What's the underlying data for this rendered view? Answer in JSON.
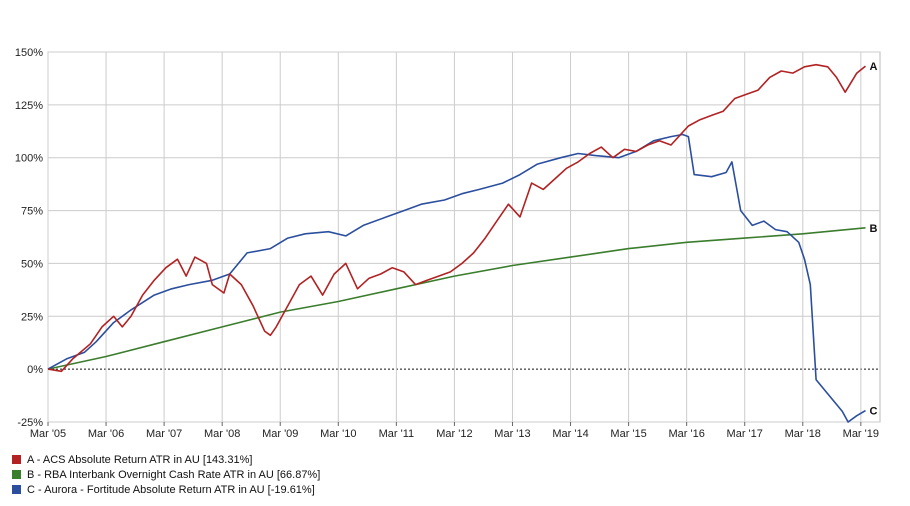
{
  "chart_data": {
    "type": "line",
    "title": "",
    "xlabel": "",
    "ylabel": "",
    "x_ticks": [
      "Mar '05",
      "Mar '06",
      "Mar '07",
      "Mar '08",
      "Mar '09",
      "Mar '10",
      "Mar '11",
      "Mar '12",
      "Mar '13",
      "Mar '14",
      "Mar '15",
      "Mar '16",
      "Mar '17",
      "Mar '18",
      "Mar '19"
    ],
    "y_ticks": [
      "150%",
      "125%",
      "100%",
      "75%",
      "50%",
      "25%",
      "0%",
      "-25%"
    ],
    "y_tick_values": [
      150,
      125,
      100,
      75,
      50,
      25,
      0,
      -25
    ],
    "xlim": [
      2005.17,
      2019.5
    ],
    "ylim": [
      -25,
      150
    ],
    "grid": true,
    "legend_position": "bottom-left",
    "series": [
      {
        "name": "A - ACS Absolute Return ATR in AU [143.31%]",
        "end_label": "A",
        "color": "#b22222",
        "x": [
          2005.17,
          2005.4,
          2005.6,
          2005.9,
          2006.1,
          2006.3,
          2006.45,
          2006.6,
          2006.8,
          2007.0,
          2007.2,
          2007.4,
          2007.55,
          2007.7,
          2007.9,
          2008.0,
          2008.2,
          2008.3,
          2008.5,
          2008.7,
          2008.9,
          2009.0,
          2009.1,
          2009.3,
          2009.5,
          2009.7,
          2009.9,
          2010.1,
          2010.3,
          2010.5,
          2010.7,
          2010.9,
          2011.1,
          2011.3,
          2011.5,
          2011.7,
          2011.9,
          2012.1,
          2012.3,
          2012.5,
          2012.7,
          2012.9,
          2013.1,
          2013.3,
          2013.5,
          2013.7,
          2013.9,
          2014.1,
          2014.3,
          2014.5,
          2014.7,
          2014.9,
          2015.1,
          2015.3,
          2015.5,
          2015.7,
          2015.9,
          2016.1,
          2016.2,
          2016.4,
          2016.6,
          2016.8,
          2017.0,
          2017.2,
          2017.4,
          2017.6,
          2017.8,
          2018.0,
          2018.2,
          2018.4,
          2018.6,
          2018.75,
          2018.9,
          2019.1,
          2019.25
        ],
        "values": [
          0,
          -1,
          5,
          12,
          20,
          25,
          20,
          25,
          35,
          42,
          48,
          52,
          44,
          53,
          50,
          40,
          36,
          45,
          40,
          30,
          18,
          16,
          20,
          30,
          40,
          44,
          35,
          45,
          50,
          38,
          43,
          45,
          48,
          46,
          40,
          42,
          44,
          46,
          50,
          55,
          62,
          70,
          78,
          72,
          88,
          85,
          90,
          95,
          98,
          102,
          105,
          100,
          104,
          103,
          106,
          108,
          106,
          112,
          115,
          118,
          120,
          122,
          128,
          130,
          132,
          138,
          141,
          140,
          143,
          144,
          143,
          138,
          131,
          140,
          143.31
        ]
      },
      {
        "name": "B - RBA Interbank Overnight Cash Rate ATR in AU [66.87%]",
        "end_label": "B",
        "color": "#3a7d2c",
        "x": [
          2005.17,
          2006.17,
          2007.17,
          2008.17,
          2009.17,
          2010.17,
          2011.17,
          2012.17,
          2013.17,
          2014.17,
          2015.17,
          2016.17,
          2017.17,
          2018.17,
          2019.25
        ],
        "values": [
          0,
          6,
          13,
          20,
          27,
          32,
          38,
          44,
          49,
          53,
          57,
          60,
          62,
          64,
          66.87
        ]
      },
      {
        "name": "C - Aurora - Fortitude Absolute Return ATR in AU [-19.61%]",
        "end_label": "C",
        "color": "#2b4f9e",
        "x": [
          2005.17,
          2005.5,
          2005.8,
          2006.0,
          2006.3,
          2006.6,
          2007.0,
          2007.3,
          2007.6,
          2008.0,
          2008.3,
          2008.6,
          2009.0,
          2009.3,
          2009.6,
          2010.0,
          2010.3,
          2010.6,
          2011.0,
          2011.3,
          2011.6,
          2012.0,
          2012.3,
          2012.6,
          2013.0,
          2013.3,
          2013.6,
          2014.0,
          2014.3,
          2014.6,
          2015.0,
          2015.3,
          2015.6,
          2015.9,
          2016.1,
          2016.2,
          2016.3,
          2016.6,
          2016.85,
          2016.95,
          2017.1,
          2017.3,
          2017.5,
          2017.7,
          2017.9,
          2018.1,
          2018.2,
          2018.3,
          2018.4,
          2018.55,
          2018.7,
          2018.85,
          2018.95,
          2019.1,
          2019.25
        ],
        "values": [
          0,
          5,
          8,
          13,
          22,
          28,
          35,
          38,
          40,
          42,
          45,
          55,
          57,
          62,
          64,
          65,
          63,
          68,
          72,
          75,
          78,
          80,
          83,
          85,
          88,
          92,
          97,
          100,
          102,
          101,
          100,
          103,
          108,
          110,
          111,
          110,
          92,
          91,
          93,
          98,
          75,
          68,
          70,
          66,
          65,
          60,
          52,
          40,
          -5,
          -10,
          -15,
          -20,
          -25,
          -22,
          -19.61
        ]
      }
    ]
  }
}
